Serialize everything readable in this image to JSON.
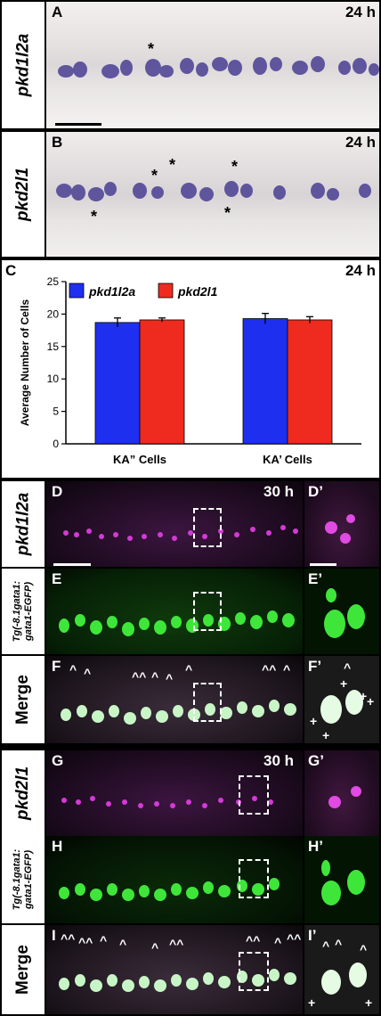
{
  "figure": {
    "panelA": {
      "letter": "A",
      "time": "24 h",
      "gene": "pkd1l2a"
    },
    "panelB": {
      "letter": "B",
      "time": "24 h",
      "gene": "pkd2l1"
    },
    "panelC": {
      "letter": "C",
      "time": "24 h"
    },
    "panelD": {
      "letter": "D",
      "letter2": "D’",
      "time": "30 h",
      "gene": "pkd1l2a"
    },
    "panelE": {
      "letter": "E",
      "letter2": "E’",
      "label_line1": "Tg(-8.1gata1:",
      "label_line2": "gata1-EGFP)"
    },
    "panelF": {
      "letter": "F",
      "letter2": "F’",
      "label": "Merge"
    },
    "panelG": {
      "letter": "G",
      "letter2": "G’",
      "time": "30 h",
      "gene": "pkd2l1"
    },
    "panelH": {
      "letter": "H",
      "letter2": "H’",
      "label_line1": "Tg(-8.1gata1:",
      "label_line2": "gata1-EGFP)"
    },
    "panelI": {
      "letter": "I",
      "letter2": "I’",
      "label": "Merge"
    },
    "marks": {
      "asterisk": "*",
      "caret": "^",
      "plus": "+",
      "double_caret": "^^"
    }
  },
  "chart_data": {
    "type": "bar",
    "title": "",
    "ylabel": "Average Number of Cells",
    "xlabel": "",
    "categories": [
      "KA” Cells",
      "KA’ Cells"
    ],
    "ylim": [
      0,
      25
    ],
    "yticks": [
      0,
      5,
      10,
      15,
      20,
      25
    ],
    "legend_position": "top-left",
    "series": [
      {
        "name": "pkd1l2a",
        "color": "#1f2ff0",
        "values": [
          18.7,
          19.3
        ],
        "errors": [
          0.7,
          0.8
        ]
      },
      {
        "name": "pkd2l1",
        "color": "#ef2a1f",
        "values": [
          19.1,
          19.1
        ],
        "errors": [
          0.3,
          0.5
        ]
      }
    ]
  }
}
